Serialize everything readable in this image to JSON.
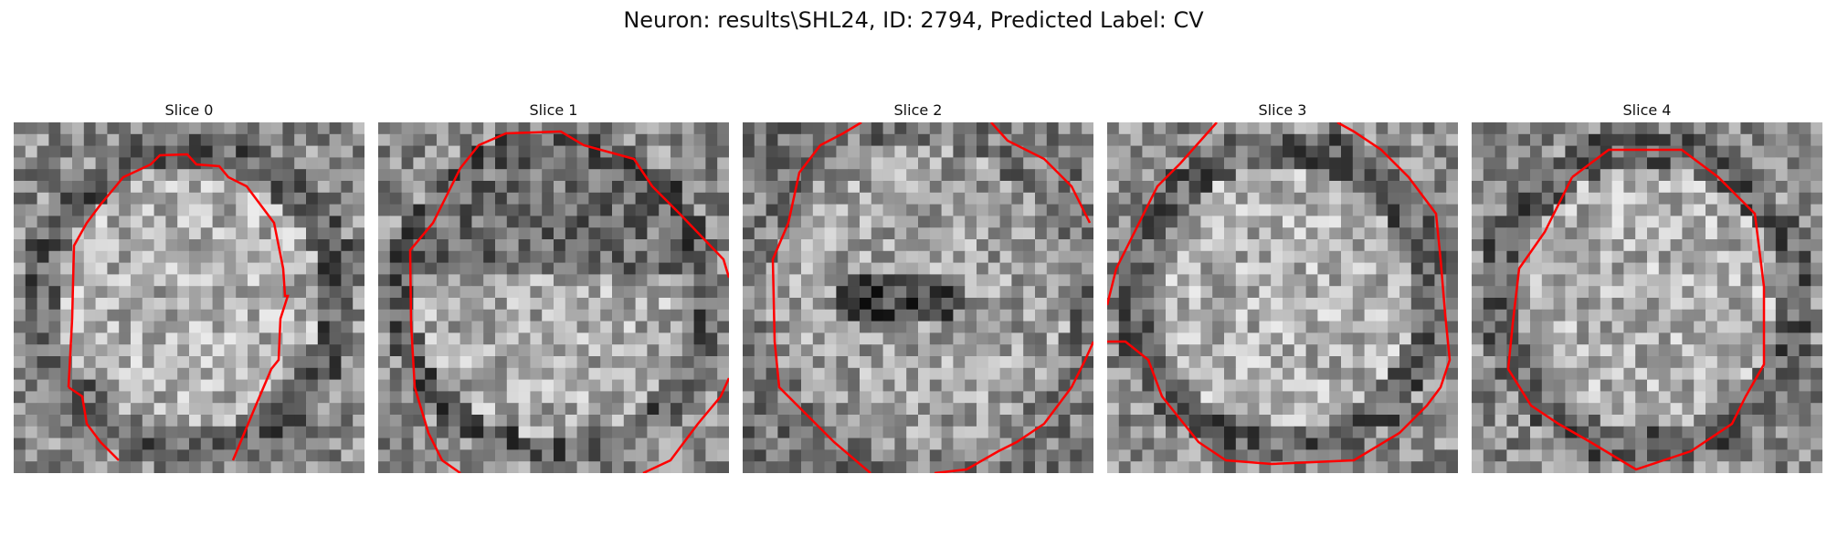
{
  "figure": {
    "title": "Neuron: results\\SHL24, ID: 2794, Predicted Label: CV",
    "contour_color": "#ff0000",
    "colormap": "gray",
    "grid_size": 30
  },
  "panels": [
    {
      "label": "Slice 0",
      "seed": 11,
      "pattern": "bright-center"
    },
    {
      "label": "Slice 1",
      "seed": 23,
      "pattern": "dark-top-bright-bottom"
    },
    {
      "label": "Slice 2",
      "seed": 37,
      "pattern": "dark-center"
    },
    {
      "label": "Slice 3",
      "seed": 41,
      "pattern": "bright-center"
    },
    {
      "label": "Slice 4",
      "seed": 53,
      "pattern": "bright-center"
    }
  ]
}
